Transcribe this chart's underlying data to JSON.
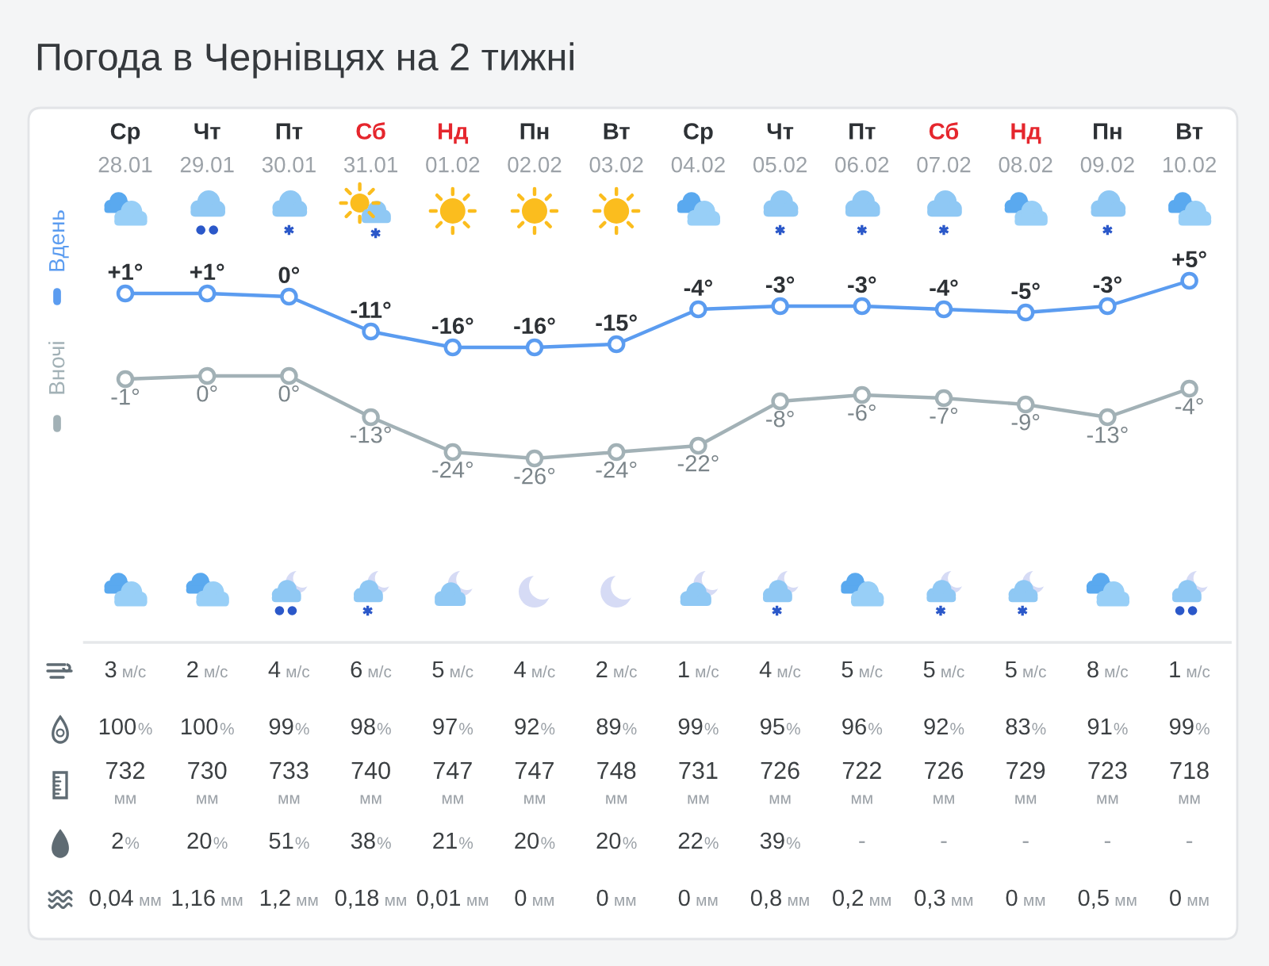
{
  "chart_data": [
    {
      "type": "line",
      "title": "Погода в Чернівцях на 2 тижні",
      "categories": [
        "Ср\n28.01",
        "Чт\n29.01",
        "Пт\n30.01",
        "Сб\n31.01",
        "Нд\n01.02",
        "Пн\n02.02",
        "Вт\n03.02",
        "Ср\n04.02",
        "Чт\n05.02",
        "Пт\n06.02",
        "Сб\n07.02",
        "Нд\n08.02",
        "Пн\n09.02",
        "Вт\n10.02"
      ],
      "legend": "left",
      "marker": "circle",
      "line_style": "solid",
      "series": [
        {
          "name": "Вдень",
          "color": "#5b9cf0",
          "values": [
            1,
            1,
            0,
            -11,
            -16,
            -16,
            -15,
            -4,
            -3,
            -3,
            -4,
            -5,
            -3,
            5
          ],
          "value_labels": [
            "+1°",
            "+1°",
            "0°",
            "-11°",
            "-16°",
            "-16°",
            "-15°",
            "-4°",
            "-3°",
            "-3°",
            "-4°",
            "-5°",
            "-3°",
            "+5°"
          ]
        }
      ]
    },
    {
      "type": "line",
      "legend": "left",
      "marker": "circle",
      "line_style": "solid",
      "series": [
        {
          "name": "Вночі",
          "color": "#a2b1b6",
          "values": [
            -1,
            0,
            0,
            -13,
            -24,
            -26,
            -24,
            -22,
            -8,
            -6,
            -7,
            -9,
            -13,
            -4
          ],
          "value_labels": [
            "-1°",
            "0°",
            "0°",
            "-13°",
            "-24°",
            "-26°",
            "-24°",
            "-22°",
            "-8°",
            "-6°",
            "-7°",
            "-9°",
            "-13°",
            "-4°"
          ]
        }
      ]
    },
    {
      "type": "other",
      "categories": [
        null,
        null,
        null,
        null,
        null,
        null,
        null,
        null,
        null,
        null,
        null,
        null,
        null,
        null
      ],
      "annotations": [
        "3 м/с",
        "2 м/с",
        "4 м/с",
        "6 м/с",
        "5 м/с",
        "4 м/с",
        "2 м/с",
        "1 м/с",
        "4 м/с",
        "5 м/с",
        "5 м/с",
        "5 м/с",
        "8 м/с",
        "1 м/с",
        "100%",
        "100%",
        "99%",
        "98%",
        "97%",
        "92%",
        "89%",
        "99%",
        "95%",
        "96%",
        "92%",
        "83%",
        "91%",
        "99%",
        "732\nмм",
        "730\nмм",
        "733\nмм",
        "740\nмм",
        "747\nмм",
        "747\nмм",
        "748\nмм",
        "731\nмм",
        "726\nмм",
        "722\nмм",
        "726\nмм",
        "729\nмм",
        "723\nмм",
        "718\nмм",
        "2%",
        "20%",
        "51%",
        "38%",
        "21%",
        "20%",
        "20%",
        "22%",
        "39%",
        "-",
        "-",
        "-",
        "-",
        "-",
        "0,04 мм",
        "1,16 мм",
        "1,2 мм",
        "0,18 мм",
        "0,01 мм",
        "0 мм",
        "0 мм",
        "0 мм",
        "0,8 мм",
        "0,2 мм",
        "0,3 мм",
        "0 мм",
        "0,5 мм",
        "0 мм"
      ]
    }
  ]
}
